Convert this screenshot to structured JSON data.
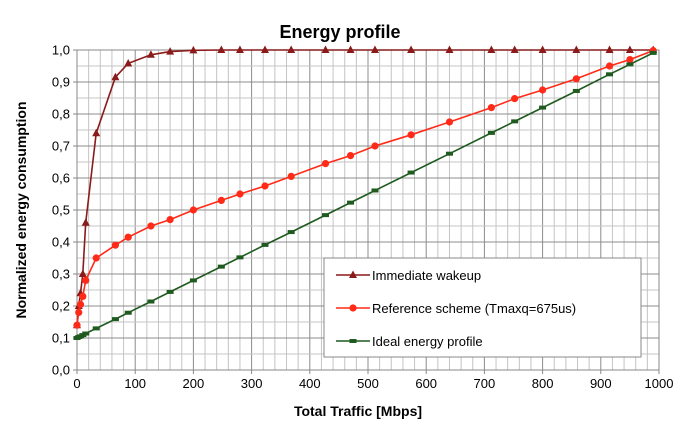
{
  "chart_data": {
    "type": "line",
    "title": "Energy profile",
    "xlabel": "Total Traffic [Mbps]",
    "ylabel": "Normalized energy consumption",
    "xlim": [
      0,
      1000
    ],
    "ylim": [
      0,
      1.0
    ],
    "x_ticks": [
      "0",
      "100",
      "200",
      "300",
      "400",
      "500",
      "600",
      "700",
      "800",
      "900",
      "1000"
    ],
    "y_ticks": [
      "0,0",
      "0,1",
      "0,2",
      "0,3",
      "0,4",
      "0,5",
      "0,6",
      "0,7",
      "0,8",
      "0,9",
      "1,0"
    ],
    "grid": "major and minor",
    "legend_position": "bottom-right",
    "series": [
      {
        "name": "Immediate wakeup",
        "color": "#8b1a1a",
        "marker": "triangle",
        "x": [
          0,
          3,
          6,
          10,
          15,
          33,
          66,
          88,
          127,
          160,
          200,
          248,
          280,
          323,
          368,
          427,
          470,
          512,
          574,
          640,
          712,
          752,
          800,
          858,
          915,
          950,
          990
        ],
        "y": [
          0.14,
          0.2,
          0.24,
          0.3,
          0.46,
          0.74,
          0.915,
          0.958,
          0.985,
          0.995,
          0.999,
          1.0,
          1.0,
          1.0,
          1.0,
          1.0,
          1.0,
          1.0,
          1.0,
          1.0,
          1.0,
          1.0,
          1.0,
          1.0,
          1.0,
          1.0,
          1.0
        ]
      },
      {
        "name": "Reference scheme (Tmaxq=675us)",
        "color": "#ff2a17",
        "marker": "circle",
        "x": [
          0,
          3,
          6,
          10,
          15,
          33,
          66,
          88,
          127,
          160,
          200,
          248,
          280,
          323,
          368,
          427,
          470,
          512,
          574,
          640,
          712,
          752,
          800,
          858,
          915,
          950,
          990
        ],
        "y": [
          0.14,
          0.18,
          0.205,
          0.23,
          0.28,
          0.35,
          0.39,
          0.415,
          0.45,
          0.47,
          0.5,
          0.53,
          0.55,
          0.575,
          0.605,
          0.645,
          0.67,
          0.7,
          0.735,
          0.775,
          0.82,
          0.848,
          0.875,
          0.91,
          0.95,
          0.97,
          0.998
        ]
      },
      {
        "name": "Ideal energy profile",
        "color": "#1f5a1f",
        "marker": "square",
        "x": [
          0,
          3,
          6,
          10,
          15,
          33,
          66,
          88,
          127,
          160,
          200,
          248,
          280,
          323,
          368,
          427,
          470,
          512,
          574,
          640,
          712,
          752,
          800,
          858,
          915,
          950,
          990
        ],
        "y": [
          0.1,
          0.103,
          0.105,
          0.109,
          0.114,
          0.13,
          0.159,
          0.179,
          0.214,
          0.244,
          0.28,
          0.323,
          0.352,
          0.391,
          0.431,
          0.484,
          0.523,
          0.561,
          0.617,
          0.676,
          0.741,
          0.777,
          0.82,
          0.872,
          0.924,
          0.955,
          0.991
        ]
      }
    ]
  }
}
